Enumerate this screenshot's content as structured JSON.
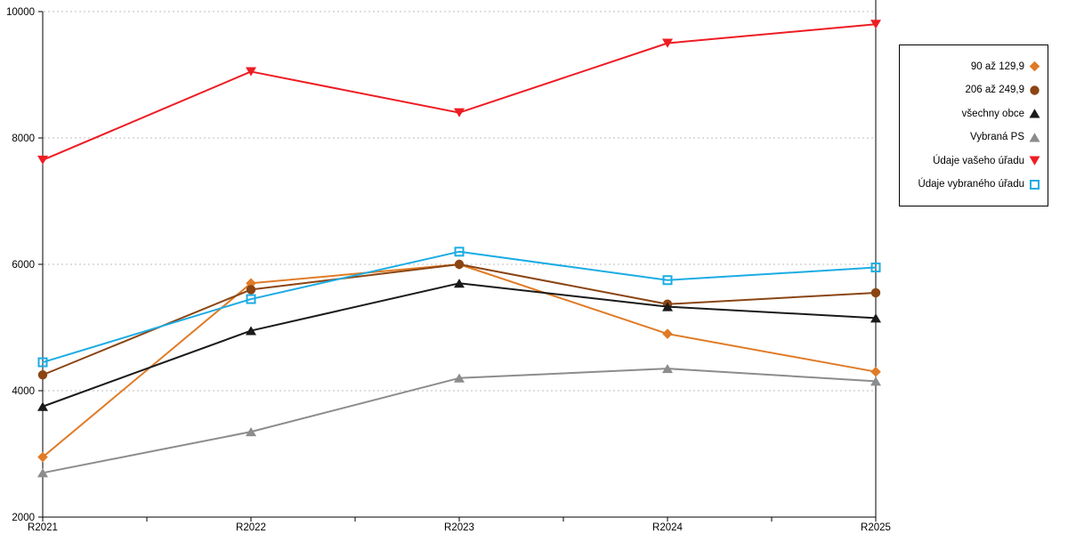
{
  "chart_data": {
    "type": "line",
    "categories": [
      "R2021",
      "R2022",
      "R2023",
      "R2024",
      "R2025"
    ],
    "series": [
      {
        "name": "90 až 129,9",
        "color": "#E07B27",
        "marker": "diamond",
        "values": [
          2950,
          5700,
          6000,
          4900,
          4300
        ]
      },
      {
        "name": "206 až 249,9",
        "color": "#8B4513",
        "marker": "circle",
        "values": [
          4250,
          5600,
          6000,
          5370,
          5550
        ]
      },
      {
        "name": "všechny obce",
        "color": "#1A1A1A",
        "marker": "triangle-up",
        "values": [
          3750,
          4950,
          5700,
          5330,
          5150
        ]
      },
      {
        "name": "Vybraná PS",
        "color": "#8C8C8C",
        "marker": "triangle-up",
        "values": [
          2700,
          3350,
          4200,
          4350,
          4150
        ]
      },
      {
        "name": "Údaje vašeho úřadu",
        "color": "#EE1C23",
        "marker": "triangle-down",
        "values": [
          7650,
          9050,
          8400,
          9500,
          9800
        ]
      },
      {
        "name": "Údaje vybraného úřadu",
        "color": "#1CACE3",
        "marker": "square-open",
        "values": [
          4450,
          5450,
          6200,
          5750,
          5950
        ]
      }
    ],
    "ylim": [
      2000,
      10000
    ],
    "yticks": [
      2000,
      4000,
      6000,
      8000,
      10000
    ],
    "ytick_labels": [
      "2000",
      "4000",
      "6000",
      "8000",
      "10000"
    ],
    "xlabel": "",
    "ylabel": "",
    "title": "",
    "grid": "horizontal dashed major gridlines",
    "legend_position": "right, boxed, markers right of text"
  },
  "colors": {
    "background": "#FFFFFF",
    "axis": "#000000",
    "gridline": "#BDBDBD",
    "text": "#000000"
  }
}
